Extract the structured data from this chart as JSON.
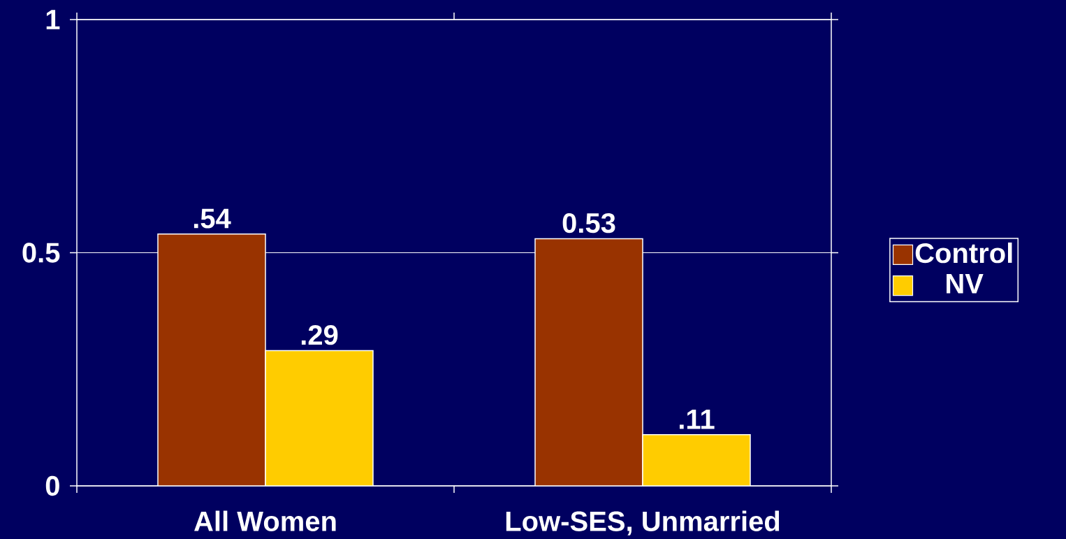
{
  "chart_data": {
    "type": "bar",
    "categories": [
      "All Women",
      "Low-SES, Unmarried"
    ],
    "series": [
      {
        "name": "Control",
        "color": "#993300",
        "values": [
          0.54,
          0.53
        ],
        "value_labels": [
          ".54",
          "0.53"
        ]
      },
      {
        "name": "NV",
        "color": "#ffcc00",
        "values": [
          0.29,
          0.11
        ],
        "value_labels": [
          ".29",
          ".11"
        ]
      }
    ],
    "ylim": [
      0,
      1
    ],
    "yticks": [
      0,
      0.5,
      1
    ],
    "grid": "y",
    "legend": "right"
  }
}
